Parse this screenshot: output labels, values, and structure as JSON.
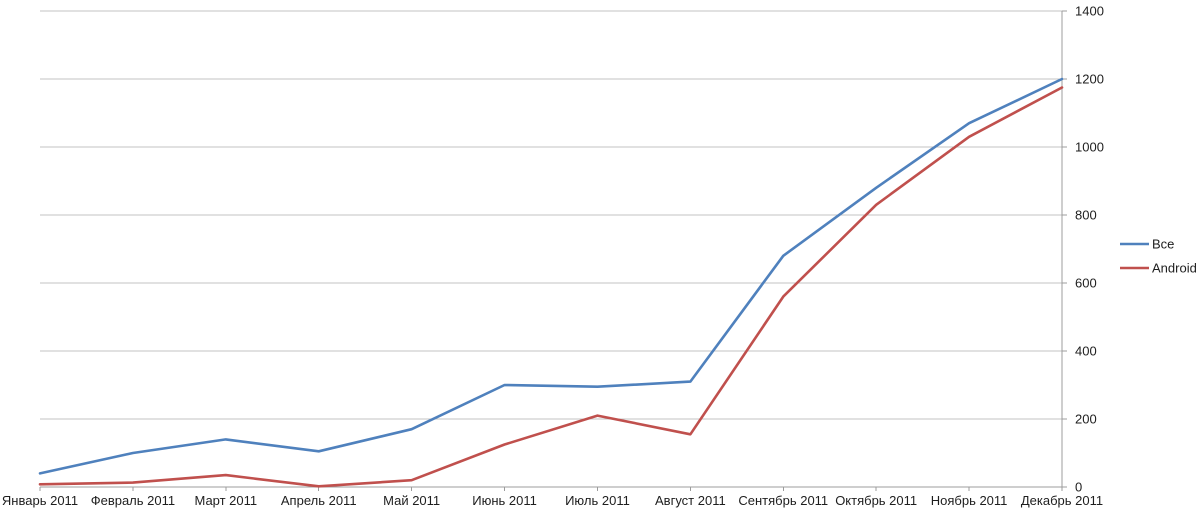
{
  "chart_data": {
    "type": "line",
    "title": "",
    "categories": [
      "Январь 2011",
      "Февраль 2011",
      "Март 2011",
      "Апрель 2011",
      "Май 2011",
      "Июнь 2011",
      "Июль 2011",
      "Август 2011",
      "Сентябрь 2011",
      "Октябрь 2011",
      "Ноябрь 2011",
      "Декабрь 2011"
    ],
    "series": [
      {
        "name": "Все",
        "color": "#4F81BD",
        "values": [
          40,
          100,
          140,
          105,
          170,
          300,
          295,
          310,
          680,
          880,
          1070,
          1200
        ]
      },
      {
        "name": "Android",
        "color": "#C0504D",
        "values": [
          8,
          13,
          35,
          2,
          20,
          125,
          210,
          155,
          560,
          830,
          1030,
          1175
        ]
      }
    ],
    "y_axis": {
      "min": 0,
      "max": 1400,
      "step": 200,
      "side": "right",
      "tick_labels": [
        "0",
        "200",
        "400",
        "600",
        "800",
        "1000",
        "1200",
        "1400"
      ]
    },
    "x_axis": {
      "side": "bottom",
      "tick_labels": [
        "Январь 2011",
        "Февраль 2011",
        "Март 2011",
        "Апрель 2011",
        "Май 2011",
        "Июнь 2011",
        "Июль 2011",
        "Август 2011",
        "Сентябрь 2011",
        "Октябрь 2011",
        "Ноябрь 2011",
        "Декабрь 2011"
      ]
    },
    "legend": {
      "position": "right",
      "entries": [
        {
          "label": "Все",
          "swatch_color": "#4F81BD"
        },
        {
          "label": "Android",
          "swatch_color": "#C0504D"
        }
      ]
    },
    "grid": "horizontal",
    "colors": {
      "background": "#FFFFFF",
      "gridline": "#C3C3C3",
      "axis_line": "#9C9C9C",
      "tick": "#9C9C9C",
      "label_text": "#1E1E1E"
    }
  }
}
